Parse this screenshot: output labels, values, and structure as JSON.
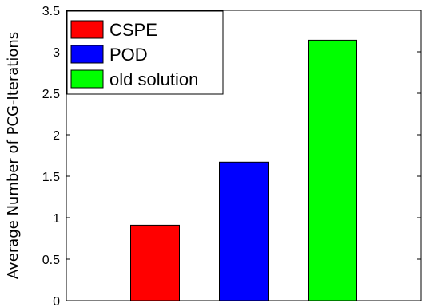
{
  "chart_data": {
    "type": "bar",
    "categories": [
      "CSPE",
      "POD",
      "old solution"
    ],
    "values": [
      0.91,
      1.67,
      3.14
    ],
    "colors": [
      "#ff0000",
      "#0000ff",
      "#00ff00"
    ],
    "title": "",
    "xlabel": "",
    "ylabel": "Average Number of PCG-Iterations",
    "ylim": [
      0,
      3.5
    ],
    "yticks": [
      0,
      0.5,
      1,
      1.5,
      2,
      2.5,
      3,
      3.5
    ],
    "ytick_labels": [
      "0",
      "0.5",
      "1",
      "1.5",
      "2",
      "2.5",
      "3",
      "3.5"
    ],
    "grid": false,
    "legend": {
      "position": "top-left",
      "entries": [
        "CSPE",
        "POD",
        "old solution"
      ]
    }
  }
}
